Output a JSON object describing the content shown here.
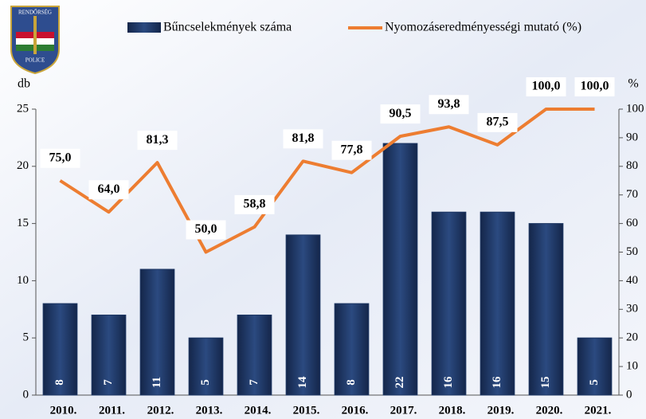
{
  "chart_data": {
    "type": "bar_line",
    "logo": {
      "top": "RENDŐRSÉG",
      "bottom": "POLICE"
    },
    "ylabel": "db",
    "y2label": "%",
    "categories": [
      "2010.",
      "2011.",
      "2012.",
      "2013.",
      "2014.",
      "2015.",
      "2016.",
      "2017.",
      "2018.",
      "2019.",
      "2020.",
      "2021."
    ],
    "series": [
      {
        "name": "Bűncselekmények száma",
        "color": "#1f3864",
        "type": "bar",
        "values": [
          8,
          7,
          11,
          5,
          7,
          14,
          8,
          22,
          16,
          16,
          15,
          5
        ]
      },
      {
        "name": "Nyomozáseredményességi mutató (%)",
        "color": "#ed7d31",
        "type": "line",
        "axis": "y2",
        "values": [
          75.0,
          64.0,
          81.3,
          50.0,
          58.8,
          81.8,
          77.8,
          90.5,
          93.8,
          87.5,
          100.0,
          100.0
        ],
        "value_labels": [
          "75,0",
          "64,0",
          "81,3",
          "50,0",
          "58,8",
          "81,8",
          "77,8",
          "90,5",
          "93,8",
          "87,5",
          "100,0",
          "100,0"
        ]
      }
    ],
    "ylim": [
      0,
      25
    ],
    "yticks": [
      0,
      5,
      10,
      15,
      20,
      25
    ],
    "y2lim": [
      0,
      100
    ],
    "y2ticks": [
      0,
      10,
      20,
      30,
      40,
      50,
      60,
      70,
      80,
      90,
      100
    ]
  }
}
